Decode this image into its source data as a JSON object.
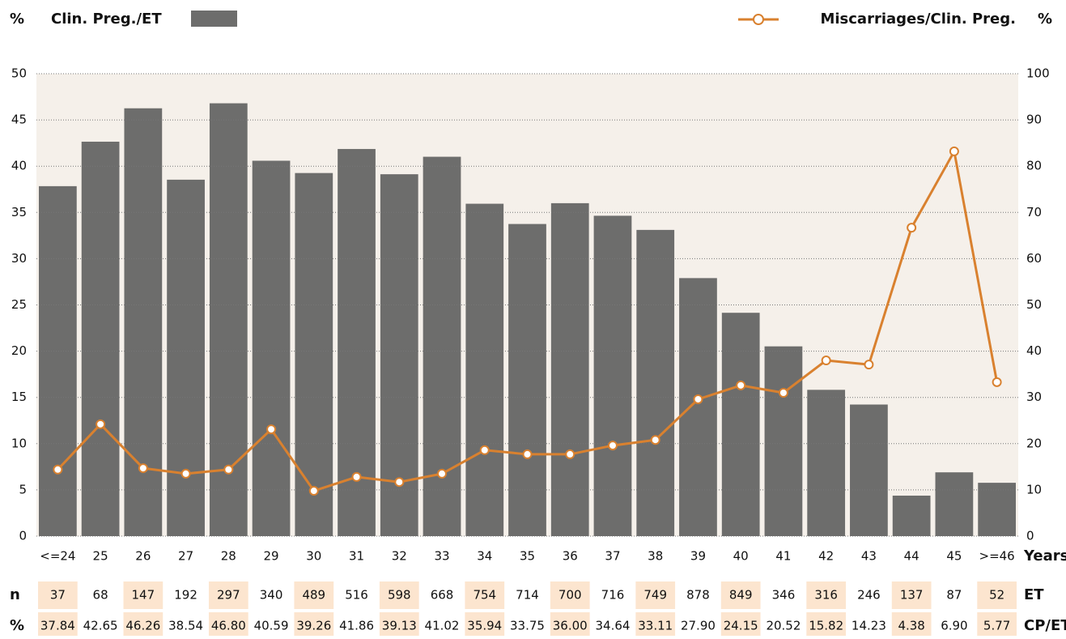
{
  "chart_data": {
    "type": "bar",
    "y_label": "%",
    "y2_label": "%",
    "x_label": "Years",
    "categories": [
      "<=24",
      "25",
      "26",
      "27",
      "28",
      "29",
      "30",
      "31",
      "32",
      "33",
      "34",
      "35",
      "36",
      "37",
      "38",
      "39",
      "40",
      "41",
      "42",
      "43",
      "44",
      "45",
      ">=46"
    ],
    "series": [
      {
        "name": "Clin. Preg./ET",
        "color": "#6d6d6c",
        "values": [
          37.84,
          42.65,
          46.26,
          38.54,
          46.8,
          40.59,
          39.26,
          41.86,
          39.13,
          41.02,
          35.94,
          33.75,
          36.0,
          34.64,
          33.11,
          27.9,
          24.15,
          20.52,
          15.82,
          14.23,
          4.38,
          6.9,
          5.77
        ],
        "value_labels": [
          "37.84",
          "42.65",
          "46.26",
          "38.54",
          "46.80",
          "40.59",
          "39.26",
          "41.86",
          "39.13",
          "41.02",
          "35.94",
          "33.75",
          "36.00",
          "34.64",
          "33.11",
          "27.90",
          "24.15",
          "20.52",
          "15.82",
          "14.23",
          "4.38",
          "6.90",
          "5.77"
        ]
      },
      {
        "name": "Miscarriages/Clin. Preg.",
        "color": "#d9812f",
        "type": "line",
        "axis": "y2",
        "values": [
          14.4,
          24.2,
          14.7,
          13.5,
          14.4,
          23.1,
          9.8,
          12.8,
          11.7,
          13.5,
          18.6,
          17.7,
          17.7,
          19.6,
          20.8,
          29.6,
          32.6,
          31.0,
          38.0,
          37.1,
          66.7,
          83.2,
          33.3
        ]
      }
    ],
    "ylim": [
      0,
      50
    ],
    "yticks": [
      0,
      5,
      10,
      15,
      20,
      25,
      30,
      35,
      40,
      45,
      50
    ],
    "y2lim": [
      0,
      100
    ],
    "y2ticks": [
      0,
      10,
      20,
      30,
      40,
      50,
      60,
      70,
      80,
      90,
      100
    ],
    "grid": true,
    "table": {
      "rows": [
        {
          "label": "n",
          "name": "ET",
          "values": [
            37,
            68,
            147,
            192,
            297,
            340,
            489,
            516,
            598,
            668,
            754,
            714,
            700,
            716,
            749,
            878,
            849,
            346,
            316,
            246,
            137,
            87,
            52
          ]
        },
        {
          "label": "%",
          "name": "CP/ET"
        }
      ]
    }
  }
}
